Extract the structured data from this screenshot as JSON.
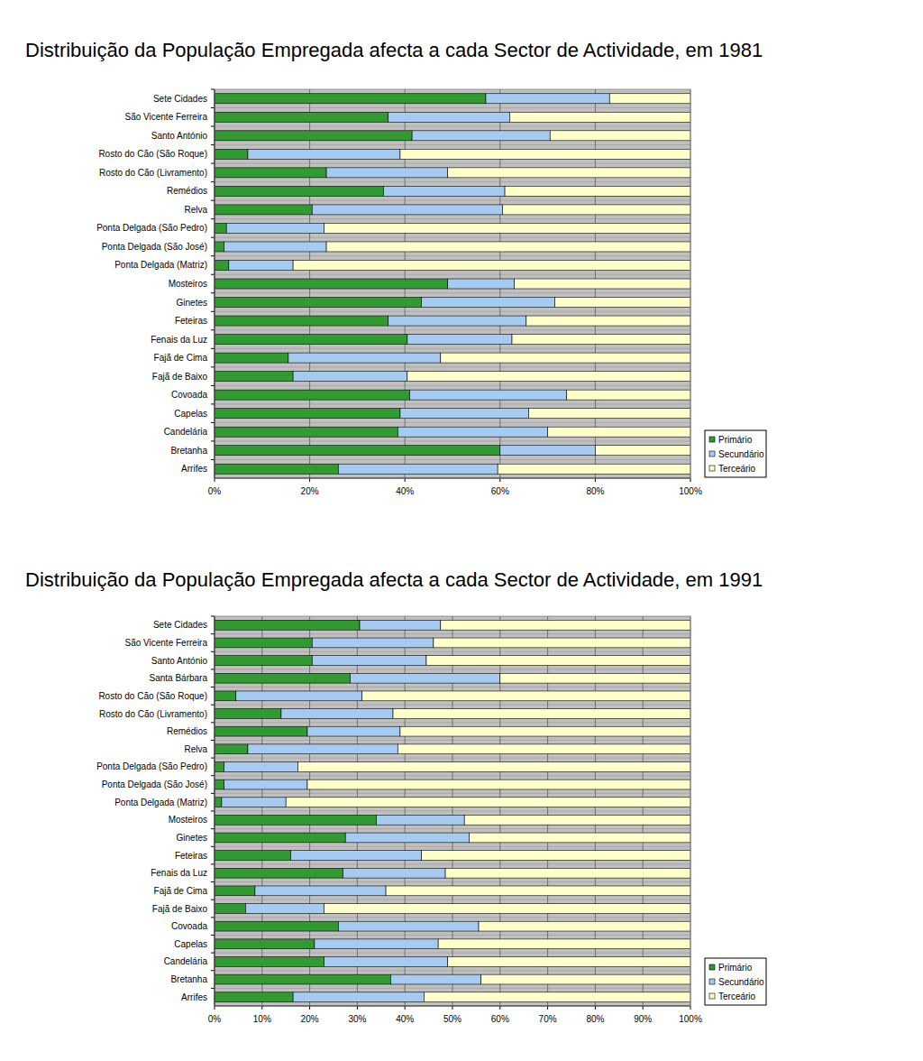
{
  "chart_data": [
    {
      "type": "bar",
      "title": "Distribuição da População Empregada afecta a cada Sector de Actividade, em 1981",
      "orientation": "horizontal",
      "stacked": true,
      "grid": true,
      "legend": "lower right",
      "categories": [
        "Sete Cidades",
        "São Vicente Ferreira",
        "Santo António",
        "Rosto do Cão (São Roque)",
        "Rosto do Cão (Livramento)",
        "Remédios",
        "Relva",
        "Ponta Delgada (São Pedro)",
        "Ponta Delgada (São José)",
        "Ponta Delgada (Matriz)",
        "Mosteiros",
        "Ginetes",
        "Feteiras",
        "Fenais da Luz",
        "Fajã de Cima",
        "Fajã de Baixo",
        "Covoada",
        "Capelas",
        "Candelária",
        "Bretanha",
        "Arrifes"
      ],
      "series": [
        {
          "name": "Primário",
          "color": "#339933",
          "values": [
            57,
            36.5,
            41.5,
            7,
            23.5,
            35.5,
            20.5,
            2.5,
            2,
            3,
            49,
            43.5,
            36.5,
            40.5,
            15.5,
            16.5,
            41,
            39,
            38.5,
            60,
            26
          ]
        },
        {
          "name": "Secundário",
          "color": "#a6caf0",
          "values": [
            26,
            25.5,
            29,
            32,
            25.5,
            25.5,
            40,
            20.5,
            21.5,
            13.5,
            14,
            28,
            29,
            22,
            32,
            24,
            33,
            27,
            31.5,
            20,
            33.5
          ]
        },
        {
          "name": "Terceário",
          "color": "#ffffcc",
          "values": [
            17,
            38,
            29.5,
            61,
            51,
            39,
            39.5,
            77,
            76.5,
            83.5,
            37,
            28.5,
            34.5,
            37.5,
            52.5,
            59.5,
            26,
            34,
            30,
            20,
            40.5
          ]
        }
      ],
      "xlim": [
        0,
        100
      ],
      "xticks": [
        {
          "value": 0,
          "label": "0%"
        },
        {
          "value": 20,
          "label": "20%"
        },
        {
          "value": 40,
          "label": "40%"
        },
        {
          "value": 60,
          "label": "60%"
        },
        {
          "value": 80,
          "label": "80%"
        },
        {
          "value": 100,
          "label": "100%"
        }
      ]
    },
    {
      "type": "bar",
      "title": "Distribuição da População Empregada afecta a cada Sector de Actividade, em 1991",
      "orientation": "horizontal",
      "stacked": true,
      "grid": true,
      "legend": "lower right",
      "categories": [
        "Sete Cidades",
        "São Vicente Ferreira",
        "Santo António",
        "Santa Bárbara",
        "Rosto do Cão (São Roque)",
        "Rosto do Cão (Livramento)",
        "Remédios",
        "Relva",
        "Ponta Delgada (São Pedro)",
        "Ponta Delgada (São José)",
        "Ponta Delgada (Matriz)",
        "Mosteiros",
        "Ginetes",
        "Feteiras",
        "Fenais da Luz",
        "Fajã de Cima",
        "Fajã de Baixo",
        "Covoada",
        "Capelas",
        "Candelária",
        "Bretanha",
        "Arrifes"
      ],
      "series": [
        {
          "name": "Primário",
          "color": "#339933",
          "values": [
            30.5,
            20.5,
            20.5,
            28.5,
            4.5,
            14,
            19.5,
            7,
            2,
            2,
            1.5,
            34,
            27.5,
            16,
            27,
            8.5,
            6.5,
            26,
            21,
            23,
            37,
            16.5
          ]
        },
        {
          "name": "Secundário",
          "color": "#a6caf0",
          "values": [
            17,
            25.5,
            24,
            31.5,
            26.5,
            23.5,
            19.5,
            31.5,
            15.5,
            17.5,
            13.5,
            18.5,
            26,
            27.5,
            21.5,
            27.5,
            16.5,
            29.5,
            26,
            26,
            19,
            27.5
          ]
        },
        {
          "name": "Terceário",
          "color": "#ffffcc",
          "values": [
            52.5,
            54,
            55.5,
            40,
            69,
            62.5,
            61,
            61.5,
            82.5,
            80.5,
            85,
            47.5,
            46.5,
            56.5,
            51.5,
            64,
            77,
            44.5,
            53,
            51,
            44,
            56
          ]
        }
      ],
      "xlim": [
        0,
        100
      ],
      "xticks": [
        {
          "value": 0,
          "label": "0%"
        },
        {
          "value": 10,
          "label": "10%"
        },
        {
          "value": 20,
          "label": "20%"
        },
        {
          "value": 30,
          "label": "30%"
        },
        {
          "value": 40,
          "label": "40%"
        },
        {
          "value": 50,
          "label": "50%"
        },
        {
          "value": 60,
          "label": "60%"
        },
        {
          "value": 70,
          "label": "70%"
        },
        {
          "value": 80,
          "label": "80%"
        },
        {
          "value": 90,
          "label": "90%"
        },
        {
          "value": 100,
          "label": "100%"
        }
      ]
    }
  ]
}
